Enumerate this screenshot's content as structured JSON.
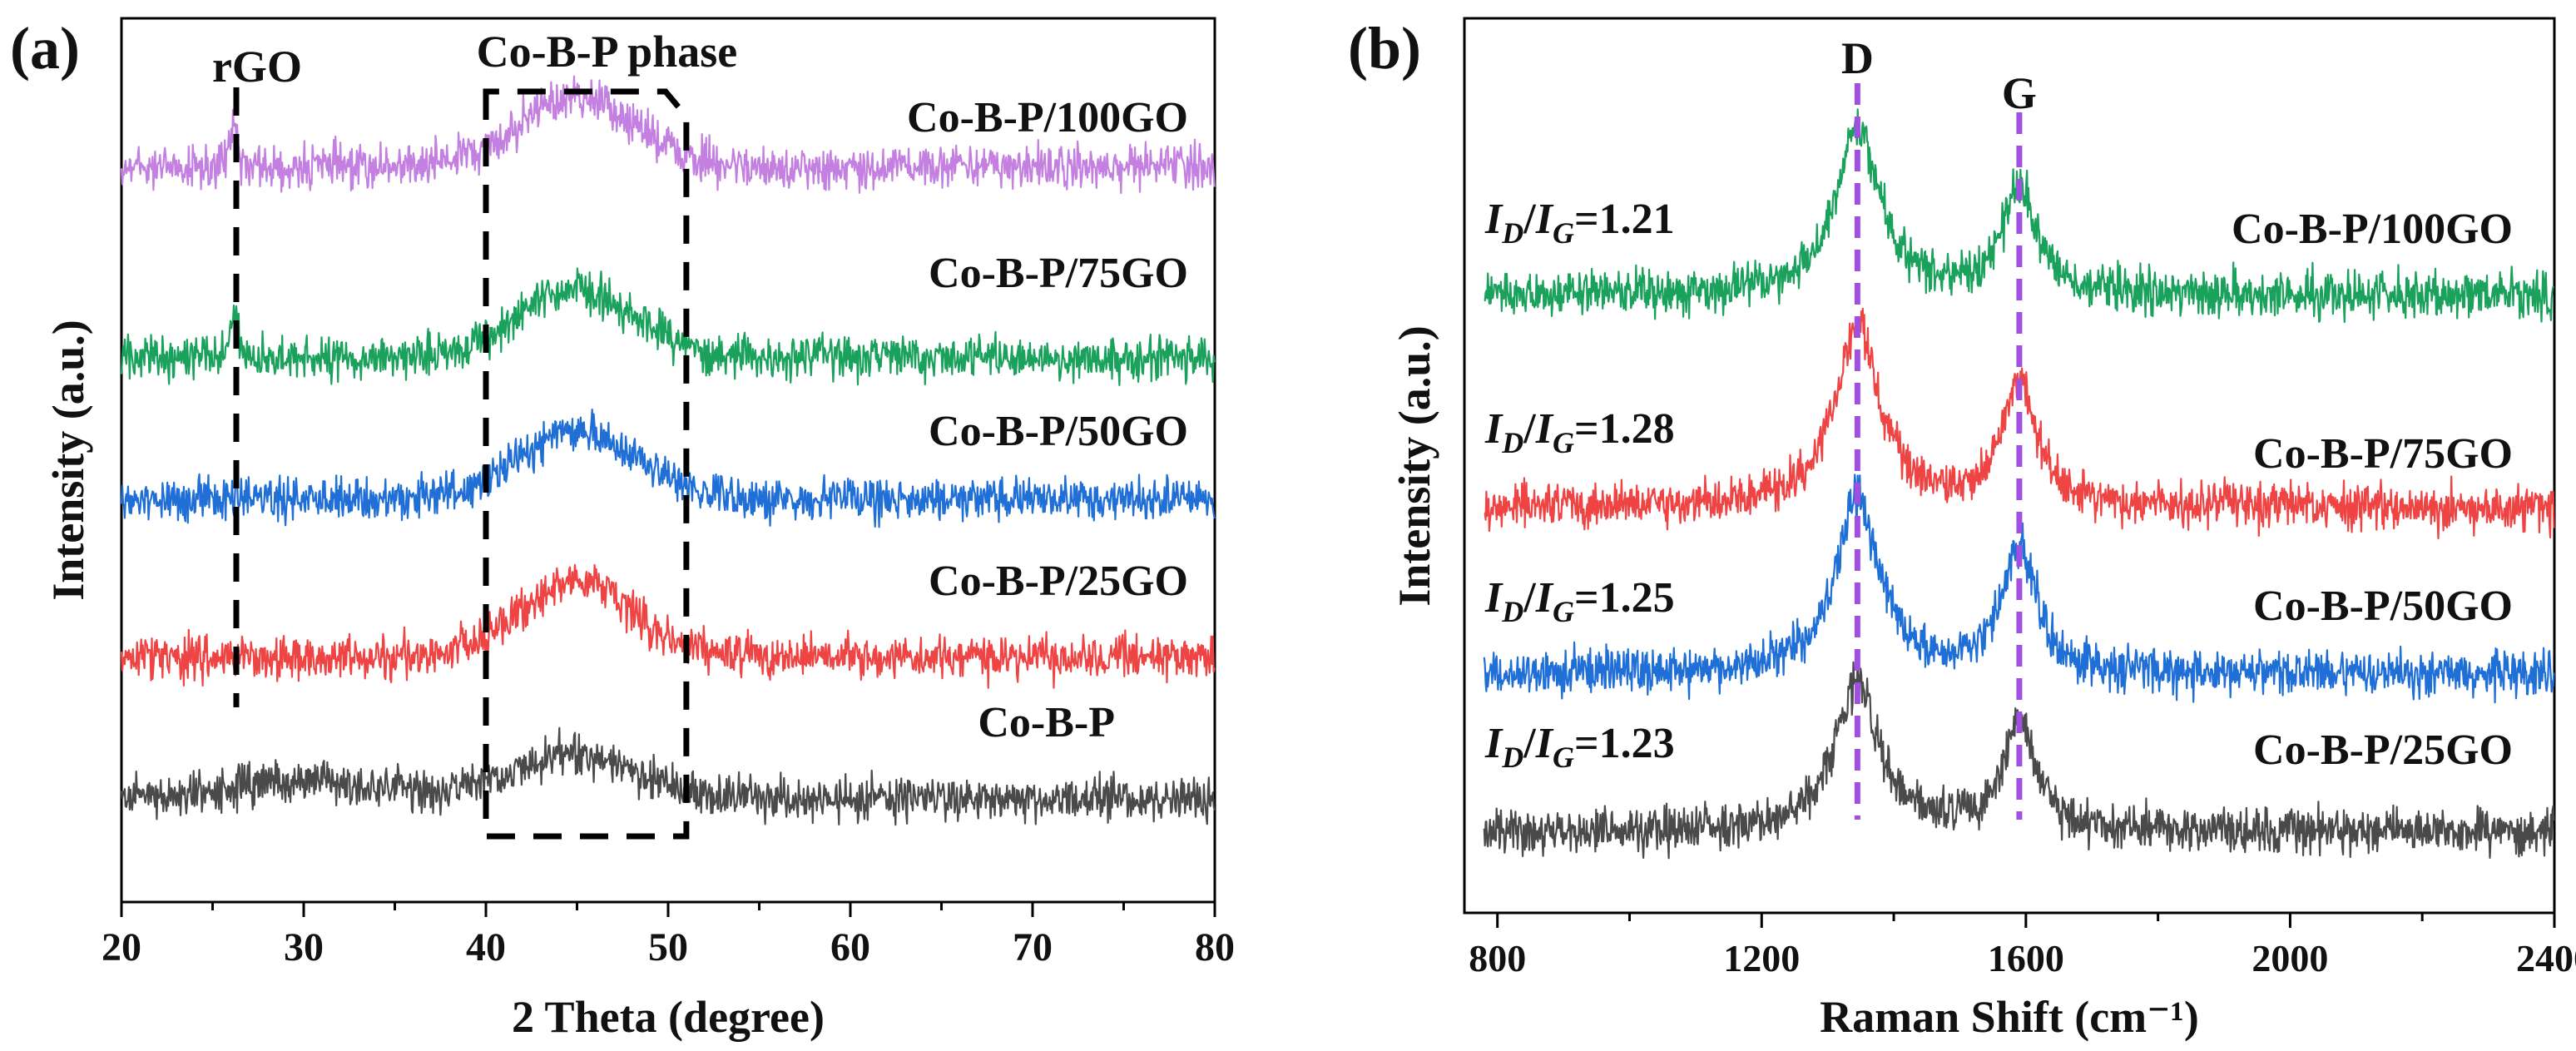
{
  "chart_data": [
    {
      "panel_label": "(a)",
      "type": "line",
      "xlabel": "2 Theta (degree)",
      "ylabel": "Intensity (a.u.)",
      "xlim": [
        20,
        80
      ],
      "xticks": [
        20,
        30,
        40,
        50,
        60,
        70,
        80
      ],
      "annotations": {
        "rgo_label": "rGO",
        "rgo_x": 26.3,
        "phase_label": "Co-B-P phase",
        "phase_range": [
          40,
          51
        ]
      },
      "series": [
        {
          "name": "Co-B-P/100GO",
          "color": "#c480e0",
          "offset": 4,
          "peaks": [
            {
              "x": 45,
              "h": 0.55,
              "w": 4.5
            },
            {
              "x": 26.2,
              "h": 0.35,
              "w": 0.3
            }
          ]
        },
        {
          "name": "Co-B-P/75GO",
          "color": "#1aa15c",
          "offset": 3,
          "peaks": [
            {
              "x": 45,
              "h": 0.55,
              "w": 4.5
            },
            {
              "x": 26.2,
              "h": 0.35,
              "w": 0.3
            }
          ]
        },
        {
          "name": "Co-B-P/50GO",
          "color": "#1f6fd6",
          "offset": 2,
          "peaks": [
            {
              "x": 45,
              "h": 0.55,
              "w": 4.5
            }
          ]
        },
        {
          "name": "Co-B-P/25GO",
          "color": "#ee4444",
          "offset": 1,
          "peaks": [
            {
              "x": 45,
              "h": 0.6,
              "w": 4.5
            }
          ]
        },
        {
          "name": "Co-B-P",
          "color": "#4a4a4a",
          "offset": 0,
          "peaks": [
            {
              "x": 45,
              "h": 0.35,
              "w": 5
            },
            {
              "x": 30,
              "h": 0.15,
              "w": 5
            }
          ]
        }
      ]
    },
    {
      "panel_label": "(b)",
      "type": "line",
      "xlabel": "Raman Shift (cm⁻¹)",
      "ylabel": "Intensity (a.u.)",
      "xlim": [
        750,
        2400
      ],
      "xticks": [
        800,
        1200,
        1600,
        2000,
        2400
      ],
      "annotations": {
        "d_label": "D",
        "d_x": 1345,
        "g_label": "G",
        "g_x": 1590
      },
      "series": [
        {
          "name": "Co-B-P/100GO",
          "ratio_label": "=1.21",
          "color": "#1aa15c",
          "offset": 3,
          "peaks": [
            {
              "x": 1345,
              "h": 1.0,
              "w": 40
            },
            {
              "x": 1590,
              "h": 0.65,
              "w": 30
            }
          ]
        },
        {
          "name": "Co-B-P/75GO",
          "ratio_label": "=1.28",
          "color": "#ee4444",
          "offset": 2,
          "peaks": [
            {
              "x": 1345,
              "h": 1.1,
              "w": 40
            },
            {
              "x": 1590,
              "h": 0.75,
              "w": 30
            }
          ]
        },
        {
          "name": "Co-B-P/50GO",
          "ratio_label": "=1.25",
          "color": "#1f6fd6",
          "offset": 1,
          "peaks": [
            {
              "x": 1345,
              "h": 1.05,
              "w": 40
            },
            {
              "x": 1590,
              "h": 0.75,
              "w": 30
            }
          ]
        },
        {
          "name": "Co-B-P/25GO",
          "ratio_label": "=1.23",
          "color": "#4a4a4a",
          "offset": 0,
          "peaks": [
            {
              "x": 1345,
              "h": 0.9,
              "w": 40
            },
            {
              "x": 1590,
              "h": 0.65,
              "w": 30
            }
          ]
        }
      ]
    }
  ]
}
